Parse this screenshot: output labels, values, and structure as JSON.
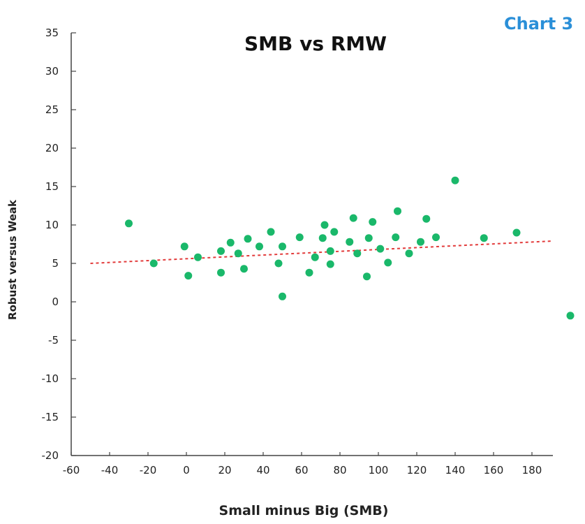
{
  "chart_data": {
    "type": "scatter",
    "title": "SMB vs RMW",
    "badge": "Chart 3",
    "xlabel": "Small minus Big (SMB)",
    "ylabel": "Robust versus Weak",
    "xlim": [
      -60,
      190
    ],
    "ylim": [
      -20,
      35
    ],
    "xticks": [
      -60,
      -40,
      -20,
      0,
      20,
      40,
      60,
      80,
      100,
      120,
      140,
      160,
      180
    ],
    "yticks": [
      -20,
      -15,
      -10,
      -5,
      0,
      5,
      10,
      15,
      20,
      25,
      30,
      35
    ],
    "grid": false,
    "legend": "none",
    "trendline": {
      "x": [
        -50,
        190
      ],
      "y": [
        5.0,
        7.9
      ],
      "style": "dashed"
    },
    "points": [
      {
        "x": -30,
        "y": 10.2
      },
      {
        "x": -17,
        "y": 5.0
      },
      {
        "x": -1,
        "y": 7.2
      },
      {
        "x": 1,
        "y": 3.4
      },
      {
        "x": 6,
        "y": 5.8
      },
      {
        "x": 18,
        "y": 3.8
      },
      {
        "x": 18,
        "y": 6.6
      },
      {
        "x": 23,
        "y": 7.7
      },
      {
        "x": 27,
        "y": 6.3
      },
      {
        "x": 30,
        "y": 4.3
      },
      {
        "x": 32,
        "y": 8.2
      },
      {
        "x": 38,
        "y": 7.2
      },
      {
        "x": 44,
        "y": 9.1
      },
      {
        "x": 48,
        "y": 5.0
      },
      {
        "x": 50,
        "y": 7.2
      },
      {
        "x": 50,
        "y": 0.7
      },
      {
        "x": 59,
        "y": 8.4
      },
      {
        "x": 64,
        "y": 3.8
      },
      {
        "x": 67,
        "y": 5.8
      },
      {
        "x": 71,
        "y": 8.3
      },
      {
        "x": 72,
        "y": 10.0
      },
      {
        "x": 75,
        "y": 6.6
      },
      {
        "x": 75,
        "y": 4.9
      },
      {
        "x": 77,
        "y": 9.1
      },
      {
        "x": 85,
        "y": 7.8
      },
      {
        "x": 87,
        "y": 10.9
      },
      {
        "x": 89,
        "y": 6.3
      },
      {
        "x": 94,
        "y": 3.3
      },
      {
        "x": 95,
        "y": 8.3
      },
      {
        "x": 97,
        "y": 10.4
      },
      {
        "x": 101,
        "y": 6.9
      },
      {
        "x": 105,
        "y": 5.1
      },
      {
        "x": 109,
        "y": 8.4
      },
      {
        "x": 110,
        "y": 11.8
      },
      {
        "x": 116,
        "y": 6.3
      },
      {
        "x": 122,
        "y": 7.8
      },
      {
        "x": 125,
        "y": 10.8
      },
      {
        "x": 130,
        "y": 8.4
      },
      {
        "x": 140,
        "y": 15.8
      },
      {
        "x": 155,
        "y": 8.3
      },
      {
        "x": 172,
        "y": 9.0
      },
      {
        "x": 200,
        "y": -1.8
      }
    ],
    "colors": {
      "point": "#1ab86a",
      "trendline": "#e23b3b",
      "axis": "#444444",
      "badge": "#2a8fd8"
    }
  }
}
